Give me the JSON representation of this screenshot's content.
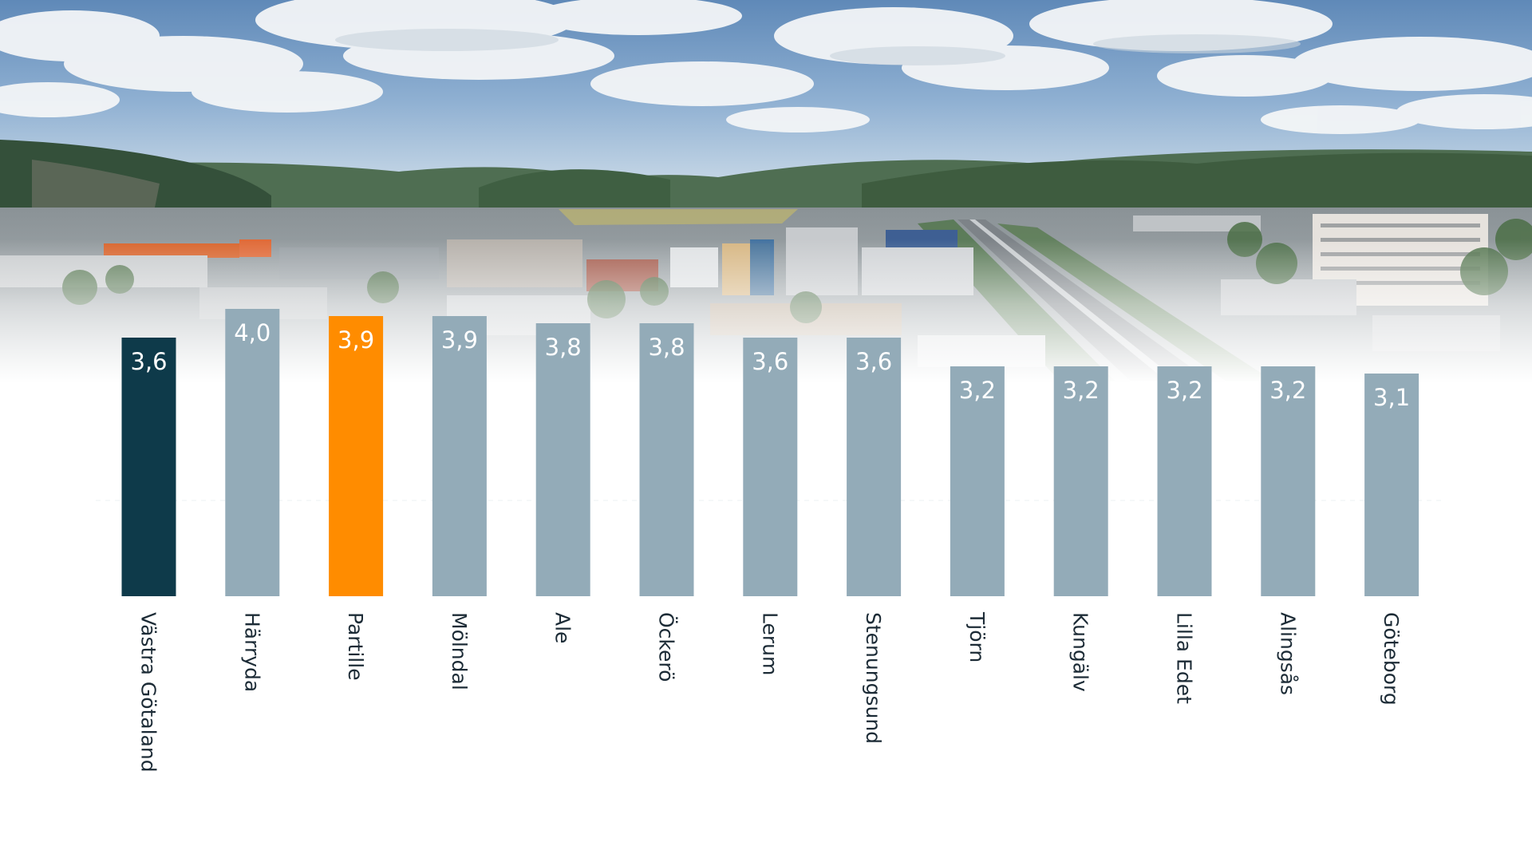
{
  "colors": {
    "highlight_region": "#0e3a4a",
    "highlight_municipality": "#ff8c00",
    "default_bar": "#93abb8",
    "label_text": "#1c2b36",
    "value_text": "#ffffff"
  },
  "background": {
    "type": "photo",
    "subject": "aerial-town-valley-with-hills-and-highway"
  },
  "chart_data": {
    "type": "bar",
    "orientation": "vertical",
    "title": "",
    "xlabel": "",
    "ylabel": "",
    "ylim": [
      0,
      4.6
    ],
    "grid": false,
    "legend": "none",
    "categories": [
      "Västra Götaland",
      "Härryda",
      "Partille",
      "Mölndal",
      "Ale",
      "Öckerö",
      "Lerum",
      "Stenungsund",
      "Tjörn",
      "Kungälv",
      "Lilla Edet",
      "Alingsås",
      "Göteborg"
    ],
    "values": [
      3.6,
      4.0,
      3.9,
      3.9,
      3.8,
      3.8,
      3.6,
      3.6,
      3.2,
      3.2,
      3.2,
      3.2,
      3.1
    ],
    "value_labels": [
      "3,6",
      "4,0",
      "3,9",
      "3,9",
      "3,8",
      "3,8",
      "3,6",
      "3,6",
      "3,2",
      "3,2",
      "3,2",
      "3,2",
      "3,1"
    ],
    "bar_colors": [
      "#0e3a4a",
      "#93abb8",
      "#ff8c00",
      "#93abb8",
      "#93abb8",
      "#93abb8",
      "#93abb8",
      "#93abb8",
      "#93abb8",
      "#93abb8",
      "#93abb8",
      "#93abb8",
      "#93abb8"
    ],
    "label_rotation": "vertical-top-to-bottom"
  }
}
